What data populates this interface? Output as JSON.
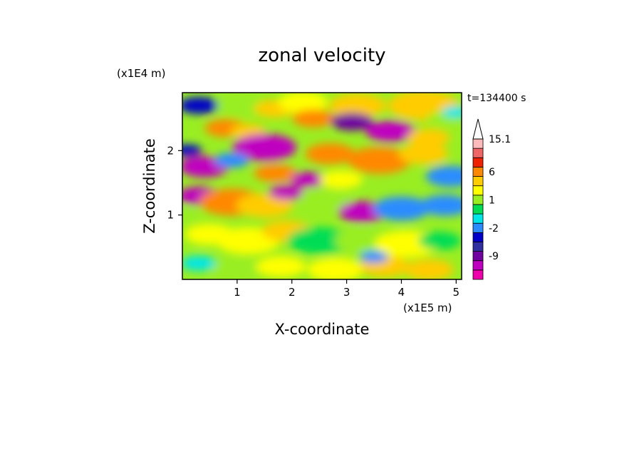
{
  "chart_data": {
    "type": "heatmap",
    "title": "zonal velocity",
    "xlabel": "X-coordinate",
    "ylabel": "Z-coordinate",
    "x_unit": "(x1E5 m)",
    "y_unit": "(x1E4 m)",
    "time_label": "t=134400 s",
    "xlim": [
      0,
      5.1
    ],
    "ylim": [
      0,
      2.9
    ],
    "x_ticks": [
      "1",
      "2",
      "3",
      "4",
      "5"
    ],
    "y_ticks": [
      "1",
      "2"
    ],
    "colorbar": {
      "levels": [
        -15,
        -12,
        -9,
        -6,
        -3,
        -2,
        -1,
        0,
        1,
        2,
        3,
        6,
        9,
        12,
        15.1
      ],
      "colors": [
        "#ee00aa",
        "#c000c0",
        "#7000a0",
        "#3030a0",
        "#0000c8",
        "#2a8cff",
        "#00e6e6",
        "#00dd55",
        "#99ee22",
        "#ffff00",
        "#ffcc00",
        "#ff8800",
        "#ee2200",
        "#ee6666",
        "#ffbbbb"
      ],
      "tick_labels": [
        {
          "label": "15.1",
          "value": 15.1
        },
        {
          "label": "6",
          "value": 6
        },
        {
          "label": "1",
          "value": 1
        },
        {
          "label": "-2",
          "value": -2
        },
        {
          "label": "-9",
          "value": -9
        }
      ]
    },
    "field": [
      {
        "x": 0.3,
        "y": 2.7,
        "r": 0.28,
        "v": -3
      },
      {
        "x": 1.1,
        "y": 2.7,
        "r": 0.35,
        "v": 1
      },
      {
        "x": 1.7,
        "y": 2.65,
        "r": 0.3,
        "v": 3
      },
      {
        "x": 2.2,
        "y": 2.75,
        "r": 0.35,
        "v": 2
      },
      {
        "x": 3.2,
        "y": 2.7,
        "r": 0.4,
        "v": 3
      },
      {
        "x": 4.4,
        "y": 2.7,
        "r": 0.5,
        "v": 5
      },
      {
        "x": 4.8,
        "y": 2.5,
        "r": 0.25,
        "v": 1
      },
      {
        "x": 5.0,
        "y": 2.6,
        "r": 0.2,
        "v": -1
      },
      {
        "x": 0.8,
        "y": 2.35,
        "r": 0.3,
        "v": 6
      },
      {
        "x": 1.2,
        "y": 2.3,
        "r": 0.25,
        "v": 4
      },
      {
        "x": 2.4,
        "y": 2.5,
        "r": 0.3,
        "v": 6
      },
      {
        "x": 3.1,
        "y": 2.45,
        "r": 0.3,
        "v": -8
      },
      {
        "x": 3.8,
        "y": 2.3,
        "r": 0.35,
        "v": -10
      },
      {
        "x": 4.5,
        "y": 2.2,
        "r": 0.3,
        "v": 3
      },
      {
        "x": 1.5,
        "y": 2.05,
        "r": 0.45,
        "v": -12
      },
      {
        "x": 0.4,
        "y": 1.75,
        "r": 0.35,
        "v": -12
      },
      {
        "x": 0.9,
        "y": 1.85,
        "r": 0.25,
        "v": -2
      },
      {
        "x": 2.7,
        "y": 1.95,
        "r": 0.35,
        "v": 7
      },
      {
        "x": 3.6,
        "y": 1.85,
        "r": 0.45,
        "v": 6
      },
      {
        "x": 4.4,
        "y": 1.95,
        "r": 0.35,
        "v": 3
      },
      {
        "x": 1.7,
        "y": 1.65,
        "r": 0.3,
        "v": 7
      },
      {
        "x": 2.3,
        "y": 1.55,
        "r": 0.25,
        "v": -10
      },
      {
        "x": 2.9,
        "y": 1.55,
        "r": 0.3,
        "v": 2
      },
      {
        "x": 4.9,
        "y": 1.6,
        "r": 0.35,
        "v": -2
      },
      {
        "x": 0.3,
        "y": 1.3,
        "r": 0.3,
        "v": -12
      },
      {
        "x": 0.9,
        "y": 1.2,
        "r": 0.45,
        "v": 6
      },
      {
        "x": 1.5,
        "y": 1.15,
        "r": 0.4,
        "v": 4
      },
      {
        "x": 1.9,
        "y": 1.35,
        "r": 0.25,
        "v": -12
      },
      {
        "x": 2.6,
        "y": 1.25,
        "r": 0.35,
        "v": 1
      },
      {
        "x": 3.3,
        "y": 1.05,
        "r": 0.35,
        "v": -12
      },
      {
        "x": 4.0,
        "y": 1.1,
        "r": 0.4,
        "v": -2
      },
      {
        "x": 4.8,
        "y": 1.15,
        "r": 0.35,
        "v": -2
      },
      {
        "x": 0.5,
        "y": 0.7,
        "r": 0.35,
        "v": 2
      },
      {
        "x": 1.2,
        "y": 0.6,
        "r": 0.45,
        "v": 2
      },
      {
        "x": 1.9,
        "y": 0.75,
        "r": 0.35,
        "v": 3
      },
      {
        "x": 2.5,
        "y": 0.6,
        "r": 0.45,
        "v": 0
      },
      {
        "x": 3.3,
        "y": 0.6,
        "r": 0.4,
        "v": 1
      },
      {
        "x": 4.1,
        "y": 0.55,
        "r": 0.45,
        "v": 2
      },
      {
        "x": 4.7,
        "y": 0.6,
        "r": 0.3,
        "v": 0
      },
      {
        "x": 0.3,
        "y": 0.25,
        "r": 0.25,
        "v": -1
      },
      {
        "x": 1.0,
        "y": 0.15,
        "r": 0.35,
        "v": 1
      },
      {
        "x": 1.8,
        "y": 0.2,
        "r": 0.35,
        "v": 2
      },
      {
        "x": 2.8,
        "y": 0.15,
        "r": 0.4,
        "v": 2
      },
      {
        "x": 3.7,
        "y": 0.2,
        "r": 0.35,
        "v": 3
      },
      {
        "x": 4.5,
        "y": 0.15,
        "r": 0.35,
        "v": 5
      },
      {
        "x": 3.5,
        "y": 0.35,
        "r": 0.2,
        "v": -2
      },
      {
        "x": 0.1,
        "y": 2.0,
        "r": 0.2,
        "v": -3
      },
      {
        "x": 0.1,
        "y": 1.0,
        "r": 0.2,
        "v": 1
      }
    ]
  }
}
